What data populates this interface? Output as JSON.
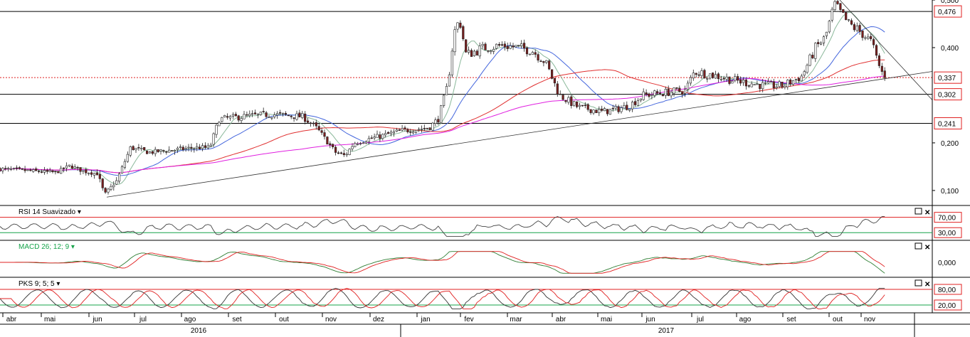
{
  "colors": {
    "candle_up": "#2e7d32",
    "candle_down": "#7a1f1f",
    "red_line": "#e02020",
    "level_line": "#000000",
    "ma_short": "#8ab89a",
    "ma_mid": "#4466dd",
    "ma_long": "#e03030",
    "ma_longest": "#e020e0",
    "rsi_line": "#444444",
    "macd_main": "#2e7d32",
    "macd_signal": "#e02020",
    "pks_main": "#333333",
    "pks_signal": "#e02020",
    "accent_green": "#16a34a"
  },
  "chart_data": {
    "type": "candlestick",
    "y_ticks": [
      "0,100",
      "0,200",
      "0,400",
      "0,500"
    ],
    "price_range": [
      0.07,
      0.5
    ],
    "levels": [
      {
        "value": 0.476,
        "label": "0,476",
        "style": "solid",
        "color": "#000000"
      },
      {
        "value": 0.337,
        "label": "0,337",
        "style": "dotted",
        "color": "#e02020"
      },
      {
        "value": 0.302,
        "label": "0,302",
        "style": "solid",
        "color": "#000000"
      },
      {
        "value": 0.241,
        "label": "0,241",
        "style": "solid",
        "color": "#000000"
      }
    ],
    "months": [
      "abr",
      "mai",
      "jun",
      "jul",
      "ago",
      "set",
      "out",
      "nov",
      "dez",
      "jan",
      "fev",
      "mar",
      "abr",
      "mai",
      "jun",
      "jul",
      "ago",
      "set",
      "out",
      "nov"
    ],
    "years": [
      "2016",
      "2017"
    ],
    "price_anchors": [
      [
        0,
        0.145
      ],
      [
        0.02,
        0.143
      ],
      [
        0.04,
        0.14
      ],
      [
        0.06,
        0.138
      ],
      [
        0.075,
        0.152
      ],
      [
        0.09,
        0.14
      ],
      [
        0.105,
        0.135
      ],
      [
        0.112,
        0.092
      ],
      [
        0.125,
        0.12
      ],
      [
        0.14,
        0.19
      ],
      [
        0.16,
        0.18
      ],
      [
        0.185,
        0.185
      ],
      [
        0.21,
        0.19
      ],
      [
        0.225,
        0.19
      ],
      [
        0.235,
        0.25
      ],
      [
        0.26,
        0.255
      ],
      [
        0.29,
        0.26
      ],
      [
        0.325,
        0.255
      ],
      [
        0.34,
        0.23
      ],
      [
        0.36,
        0.18
      ],
      [
        0.37,
        0.173
      ],
      [
        0.38,
        0.2
      ],
      [
        0.4,
        0.21
      ],
      [
        0.43,
        0.225
      ],
      [
        0.46,
        0.232
      ],
      [
        0.47,
        0.25
      ],
      [
        0.48,
        0.32
      ],
      [
        0.487,
        0.43
      ],
      [
        0.493,
        0.46
      ],
      [
        0.5,
        0.385
      ],
      [
        0.52,
        0.4
      ],
      [
        0.54,
        0.405
      ],
      [
        0.57,
        0.395
      ],
      [
        0.585,
        0.37
      ],
      [
        0.6,
        0.3
      ],
      [
        0.62,
        0.275
      ],
      [
        0.635,
        0.27
      ],
      [
        0.645,
        0.265
      ],
      [
        0.66,
        0.27
      ],
      [
        0.675,
        0.278
      ],
      [
        0.69,
        0.3
      ],
      [
        0.71,
        0.305
      ],
      [
        0.735,
        0.31
      ],
      [
        0.745,
        0.35
      ],
      [
        0.77,
        0.34
      ],
      [
        0.79,
        0.33
      ],
      [
        0.82,
        0.32
      ],
      [
        0.84,
        0.32
      ],
      [
        0.86,
        0.34
      ],
      [
        0.875,
        0.4
      ],
      [
        0.885,
        0.42
      ],
      [
        0.895,
        0.49
      ],
      [
        0.91,
        0.45
      ],
      [
        0.925,
        0.43
      ],
      [
        0.935,
        0.41
      ],
      [
        0.945,
        0.35
      ],
      [
        0.952,
        0.337
      ]
    ],
    "panels": [
      {
        "title": "RSI 14 Suavizado",
        "levels": [
          "70,00",
          "30,00"
        ]
      },
      {
        "title": "MACD 26; 12; 9",
        "levels": [
          "0,000"
        ]
      },
      {
        "title": "PKS 9; 5; 5",
        "levels": [
          "80,00",
          "20,00"
        ]
      }
    ]
  }
}
